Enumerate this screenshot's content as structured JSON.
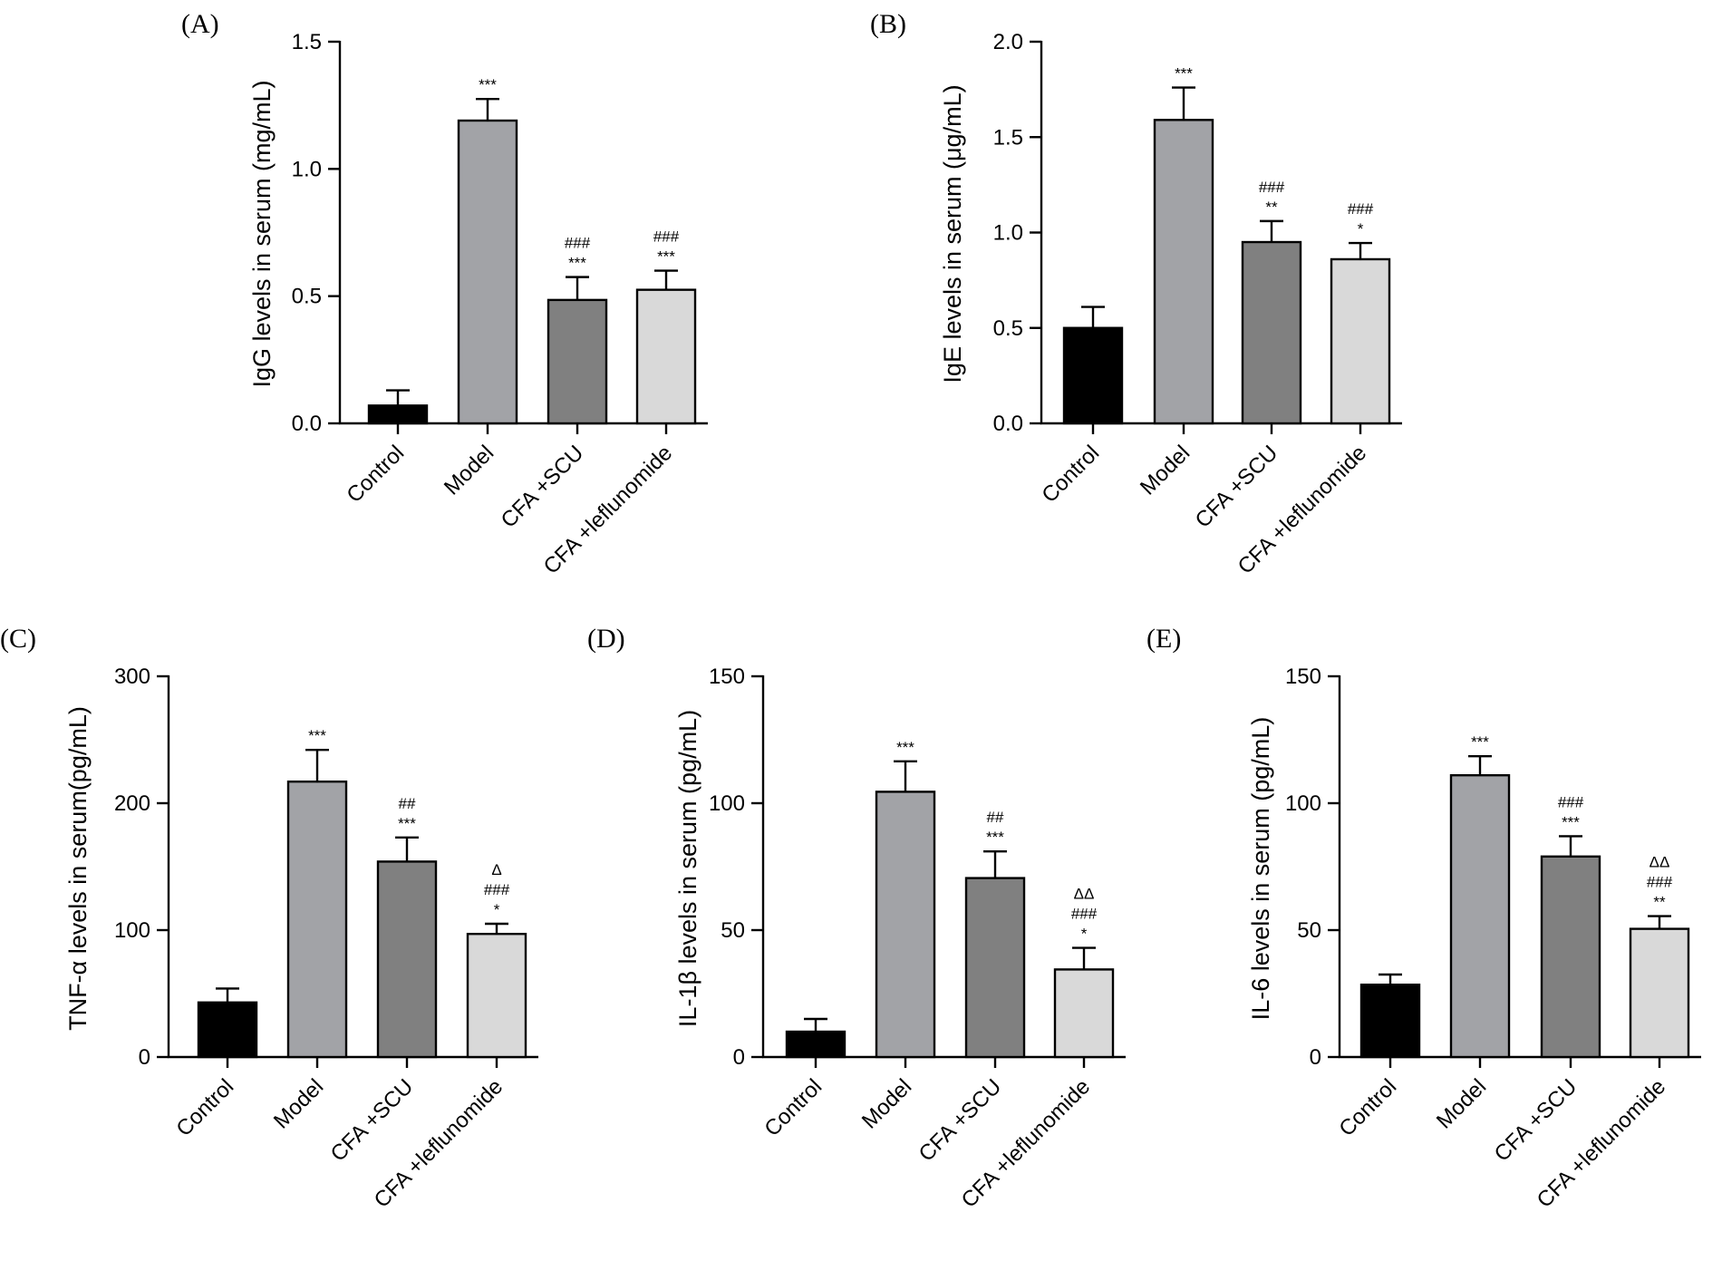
{
  "chart_data": [
    {
      "type": "bar",
      "panel": "(A)",
      "ylabel": "IgG levels in serum (mg/mL)",
      "ylim": [
        0,
        1.5
      ],
      "yticks": [
        "0.0",
        "0.5",
        "1.0",
        "1.5"
      ],
      "ytick_values": [
        0,
        0.5,
        1.0,
        1.5
      ],
      "categories": [
        "Control",
        "Model",
        "CFA +SCU",
        "CFA +leflunomide"
      ],
      "values": [
        0.07,
        1.19,
        0.485,
        0.525
      ],
      "errors": [
        0.06,
        0.085,
        0.09,
        0.075
      ],
      "annotations": [
        [],
        [
          "***"
        ],
        [
          "###",
          "***"
        ],
        [
          "###",
          "***"
        ]
      ],
      "colors": [
        "#000000",
        "#a2a3a7",
        "#808080",
        "#d9d9d9"
      ]
    },
    {
      "type": "bar",
      "panel": "(B)",
      "ylabel": "IgE levels in serum (μg/mL)",
      "ylim": [
        0,
        2.0
      ],
      "yticks": [
        "0.0",
        "0.5",
        "1.0",
        "1.5",
        "2.0"
      ],
      "ytick_values": [
        0,
        0.5,
        1.0,
        1.5,
        2.0
      ],
      "categories": [
        "Control",
        "Model",
        "CFA +SCU",
        "CFA +leflunomide"
      ],
      "values": [
        0.5,
        1.59,
        0.95,
        0.86
      ],
      "errors": [
        0.11,
        0.17,
        0.11,
        0.085
      ],
      "annotations": [
        [],
        [
          "***"
        ],
        [
          "###",
          "**"
        ],
        [
          "###",
          "*"
        ]
      ],
      "colors": [
        "#000000",
        "#a2a3a7",
        "#808080",
        "#d9d9d9"
      ]
    },
    {
      "type": "bar",
      "panel": "(C)",
      "ylabel": "TNF-α levels in serum(pg/mL)",
      "ylim": [
        0,
        300
      ],
      "yticks": [
        "0",
        "100",
        "200",
        "300"
      ],
      "ytick_values": [
        0,
        100,
        200,
        300
      ],
      "categories": [
        "Control",
        "Model",
        "CFA +SCU",
        "CFA +leflunomide"
      ],
      "values": [
        43,
        217,
        154,
        97
      ],
      "errors": [
        11,
        25,
        19,
        8
      ],
      "annotations": [
        [],
        [
          "***"
        ],
        [
          "##",
          "***"
        ],
        [
          "Δ",
          "###",
          "*"
        ]
      ],
      "colors": [
        "#000000",
        "#a2a3a7",
        "#808080",
        "#d9d9d9"
      ]
    },
    {
      "type": "bar",
      "panel": "(D)",
      "ylabel": "IL-1β levels in serum (pg/mL)",
      "ylim": [
        0,
        150
      ],
      "yticks": [
        "0",
        "50",
        "100",
        "150"
      ],
      "ytick_values": [
        0,
        50,
        100,
        150
      ],
      "categories": [
        "Control",
        "Model",
        "CFA +SCU",
        "CFA +leflunomide"
      ],
      "values": [
        10,
        104.5,
        70.5,
        34.5
      ],
      "errors": [
        5,
        12,
        10.5,
        8.5
      ],
      "annotations": [
        [],
        [
          "***"
        ],
        [
          "##",
          "***"
        ],
        [
          "ΔΔ",
          "###",
          "*"
        ]
      ],
      "colors": [
        "#000000",
        "#a2a3a7",
        "#808080",
        "#d9d9d9"
      ]
    },
    {
      "type": "bar",
      "panel": "(E)",
      "ylabel": "IL-6 levels in serum (pg/mL)",
      "ylim": [
        0,
        150
      ],
      "yticks": [
        "0",
        "50",
        "100",
        "150"
      ],
      "ytick_values": [
        0,
        50,
        100,
        150
      ],
      "categories": [
        "Control",
        "Model",
        "CFA +SCU",
        "CFA +leflunomide"
      ],
      "values": [
        28.5,
        111,
        79,
        50.5
      ],
      "errors": [
        4,
        7.5,
        8,
        5
      ],
      "annotations": [
        [],
        [
          "***"
        ],
        [
          "###",
          "***"
        ],
        [
          "ΔΔ",
          "###",
          "**"
        ]
      ],
      "colors": [
        "#000000",
        "#a2a3a7",
        "#808080",
        "#d9d9d9"
      ]
    }
  ]
}
